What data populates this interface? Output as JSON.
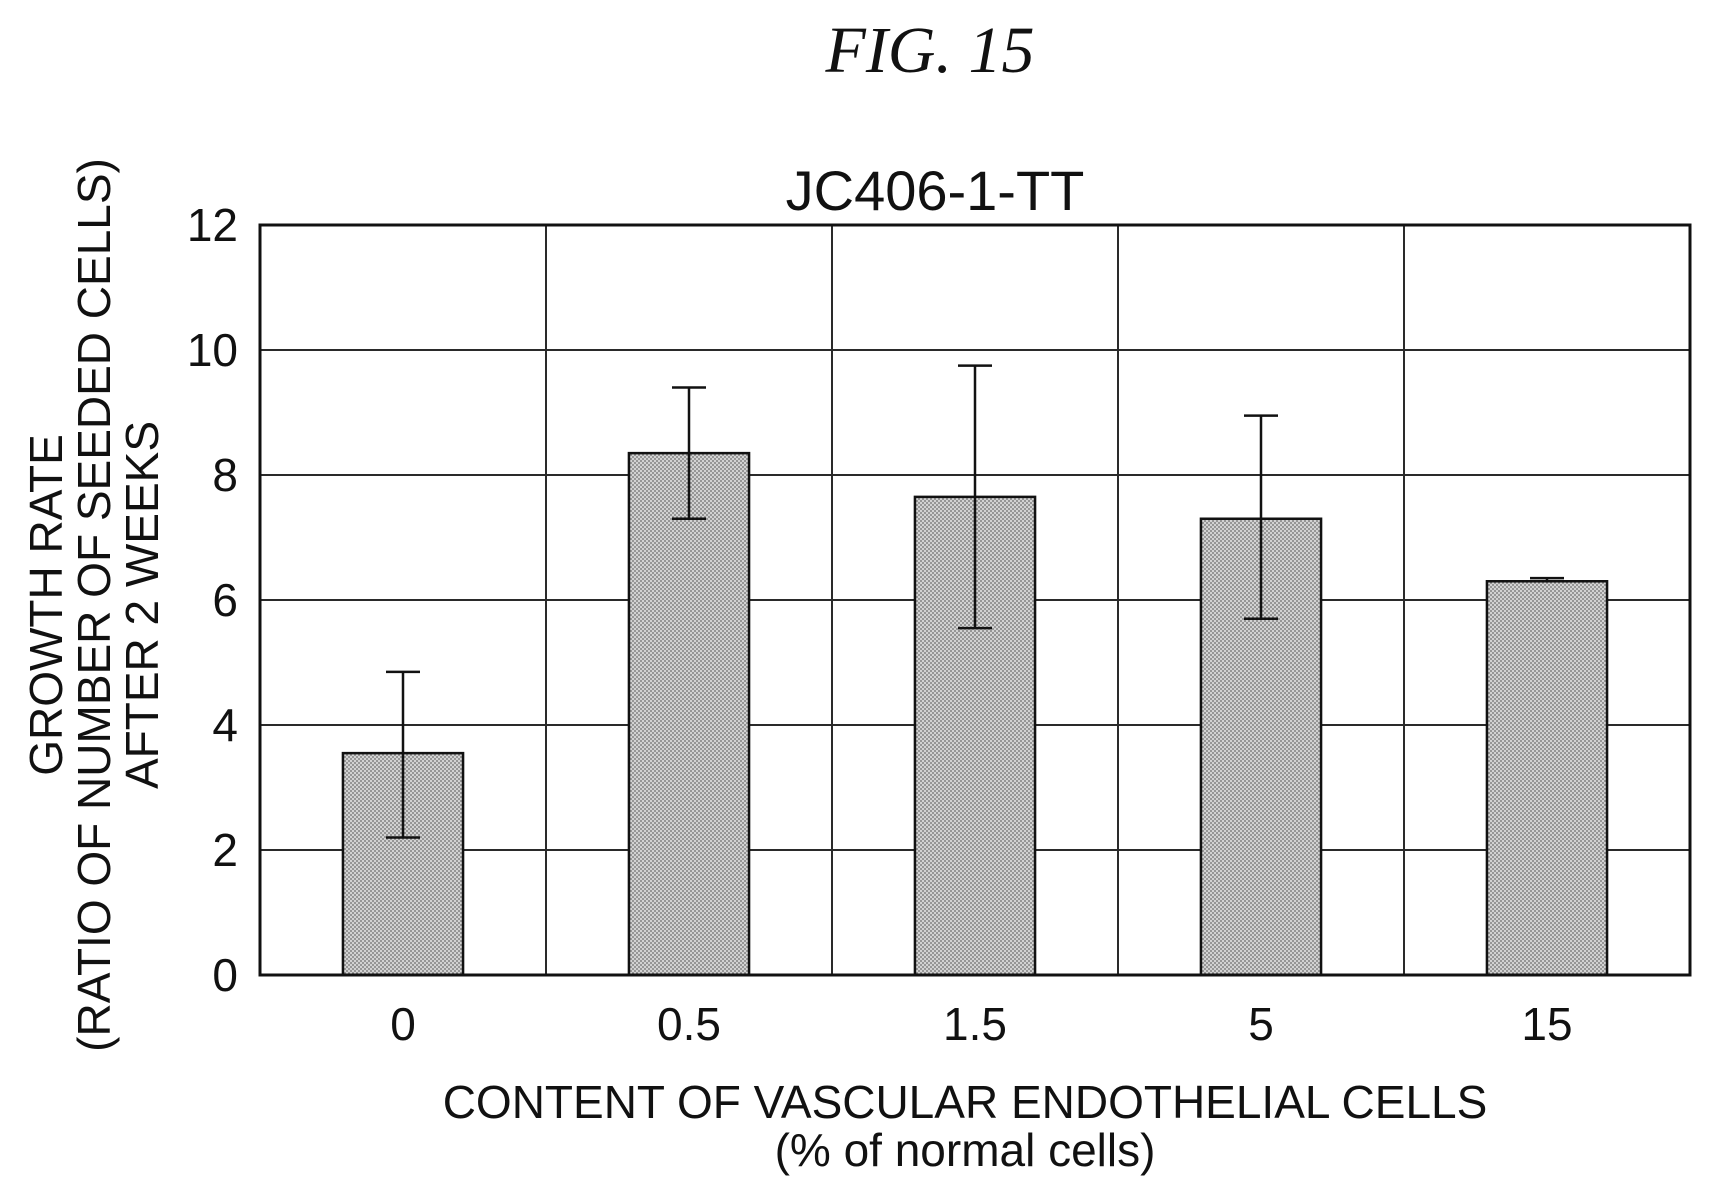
{
  "figure_label": "FIG. 15",
  "chart_data": {
    "type": "bar",
    "title": "JC406-1-TT",
    "categories": [
      "0",
      "0.5",
      "1.5",
      "5",
      "15"
    ],
    "values": [
      3.55,
      8.35,
      7.65,
      7.3,
      6.3
    ],
    "error_upper": [
      4.85,
      9.4,
      9.75,
      8.95,
      6.35
    ],
    "error_lower": [
      2.2,
      7.3,
      5.55,
      5.7,
      6.3
    ],
    "xlabel": [
      "CONTENT OF VASCULAR ENDOTHELIAL CELLS",
      "(% of normal cells)"
    ],
    "ylabel": [
      "GROWTH RATE",
      "(RATIO OF NUMBER OF SEEDED CELLS)",
      "AFTER 2 WEEKS"
    ],
    "ylim": [
      0,
      12
    ],
    "yticks": [
      "0",
      "2",
      "4",
      "6",
      "8",
      "10",
      "12"
    ],
    "grid": true,
    "legend": "none"
  }
}
